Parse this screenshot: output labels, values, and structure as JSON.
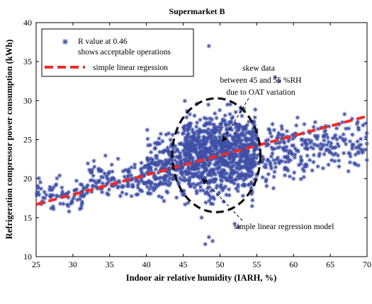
{
  "chart_data": {
    "type": "scatter",
    "title": "Supermarket B",
    "xlabel": "Indoor air relative humidity (IARH, %)",
    "ylabel": "Refrigeration compressor power consumption (kWh)",
    "xlim": [
      25,
      70
    ],
    "ylim": [
      10,
      40
    ],
    "xticks": [
      25,
      30,
      35,
      40,
      45,
      50,
      55,
      60,
      65,
      70
    ],
    "yticks": [
      10,
      15,
      20,
      25,
      30,
      35,
      40
    ],
    "grid": false,
    "legend": {
      "placement": "top-left",
      "entries": [
        {
          "label_line1": "R value at 0.46",
          "label_line2": "shows acceptable operations",
          "marker": "asterisk",
          "color": "#3f4fa6"
        },
        {
          "label": "simple linear regession",
          "style": "dashed",
          "color": "#ee2b2b"
        }
      ]
    },
    "series": [
      {
        "type": "scatter",
        "color": "#3f4fa6",
        "marker": "asterisk",
        "clusters": [
          {
            "x_range": [
              25,
              32
            ],
            "y_range": [
              15.2,
              21.0
            ],
            "count": 80
          },
          {
            "x_range": [
              32,
              40
            ],
            "y_range": [
              16.5,
              23.5
            ],
            "count": 130
          },
          {
            "x_range": [
              40,
              45
            ],
            "y_range": [
              16.0,
              27.0
            ],
            "count": 220
          },
          {
            "x_range": [
              45,
              55
            ],
            "y_range": [
              15.5,
              30.5
            ],
            "count": 900
          },
          {
            "x_range": [
              55,
              62
            ],
            "y_range": [
              18.0,
              29.0
            ],
            "count": 150
          },
          {
            "x_range": [
              62,
              70
            ],
            "y_range": [
              20.0,
              29.0
            ],
            "count": 120
          }
        ],
        "notable_points": [
          {
            "x": 48.5,
            "y": 37.0
          },
          {
            "x": 57.5,
            "y": 33.0
          },
          {
            "x": 58.0,
            "y": 32.5
          },
          {
            "x": 48.5,
            "y": 12.5
          },
          {
            "x": 49.0,
            "y": 12.0
          },
          {
            "x": 48.0,
            "y": 11.6
          },
          {
            "x": 47.5,
            "y": 15.0
          },
          {
            "x": 52.0,
            "y": 14.2
          },
          {
            "x": 52.5,
            "y": 13.8
          }
        ]
      },
      {
        "type": "line",
        "color": "#ee2b2b",
        "style": "dashed",
        "x": [
          25,
          70
        ],
        "y": [
          16.7,
          28.0
        ]
      }
    ],
    "annotations": [
      {
        "text_lines": [
          "skew data",
          "between 45 and 55 %RH",
          "due to OAT variation"
        ],
        "arrow_to": {
          "x": 49.8,
          "y": 30.3
        }
      },
      {
        "text_lines": [
          "simple linear regression model"
        ],
        "arrow_to": {
          "x": 48.5,
          "y": 22.3
        }
      }
    ],
    "highlight_ellipse": {
      "cx": 49.5,
      "cy": 23.0,
      "rx": 6.0,
      "ry": 7.3,
      "style": "dashed",
      "color": "#111111"
    }
  }
}
